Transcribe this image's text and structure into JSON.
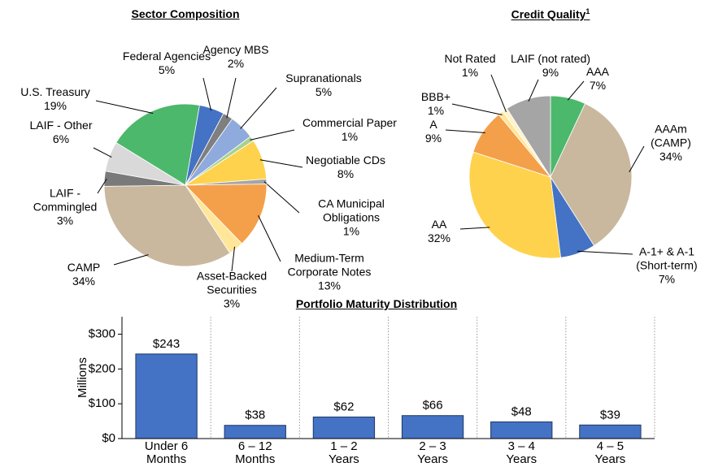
{
  "chart_data": [
    {
      "type": "pie",
      "title": "Sector Composition",
      "categories": [
        "Federal Agencies",
        "Agency MBS",
        "Supranationals",
        "Commercial Paper",
        "Negotiable CDs",
        "CA Municipal Obligations",
        "Medium-Term Corporate Notes",
        "Asset-Backed Securities",
        "CAMP",
        "LAIF - Commingled",
        "LAIF - Other",
        "U.S. Treasury"
      ],
      "values": [
        5,
        2,
        5,
        1,
        8,
        1,
        13,
        3,
        34,
        3,
        6,
        19
      ],
      "value_labels": [
        "5%",
        "2%",
        "5%",
        "1%",
        "8%",
        "1%",
        "13%",
        "3%",
        "34%",
        "3%",
        "6%",
        "19%"
      ],
      "colors": [
        "#4472c4",
        "#7f7f7f",
        "#8faadc",
        "#a9d18e",
        "#ffd24d",
        "#a5a5a5",
        "#f4a04a",
        "#ffe699",
        "#c9b89e",
        "#7a7a7a",
        "#d9d9d9",
        "#4cb86b"
      ]
    },
    {
      "type": "pie",
      "title": "Credit Quality",
      "title_superscript": "1",
      "categories": [
        "AAA",
        "AAAm (CAMP)",
        "A-1+ & A-1 (Short-term)",
        "AA",
        "A",
        "BBB+",
        "Not Rated",
        "LAIF (not rated)"
      ],
      "values": [
        7,
        34,
        7,
        32,
        9,
        1,
        1,
        9
      ],
      "value_labels": [
        "7%",
        "34%",
        "7%",
        "32%",
        "9%",
        "1%",
        "1%",
        "9%"
      ],
      "colors": [
        "#4cb86b",
        "#c9b89e",
        "#4472c4",
        "#ffd24d",
        "#f4a04a",
        "#ffe699",
        "#fff2cc",
        "#a5a5a5"
      ]
    },
    {
      "type": "bar",
      "title": "Portfolio Maturity Distribution",
      "ylabel": "Millions",
      "categories": [
        "Under 6 Months",
        "6 – 12 Months",
        "1 – 2 Years",
        "2 – 3 Years",
        "3 – 4 Years",
        "4 – 5 Years"
      ],
      "values": [
        243,
        38,
        62,
        66,
        48,
        39
      ],
      "value_labels": [
        "$243",
        "$38",
        "$62",
        "$66",
        "$48",
        "$39"
      ],
      "color": "#4472c4",
      "ylim": [
        0,
        350
      ],
      "yticks": [
        {
          "value": 0,
          "label": "$0"
        },
        {
          "value": 100,
          "label": "$100"
        },
        {
          "value": 200,
          "label": "$200"
        },
        {
          "value": 300,
          "label": "$300"
        }
      ]
    }
  ]
}
